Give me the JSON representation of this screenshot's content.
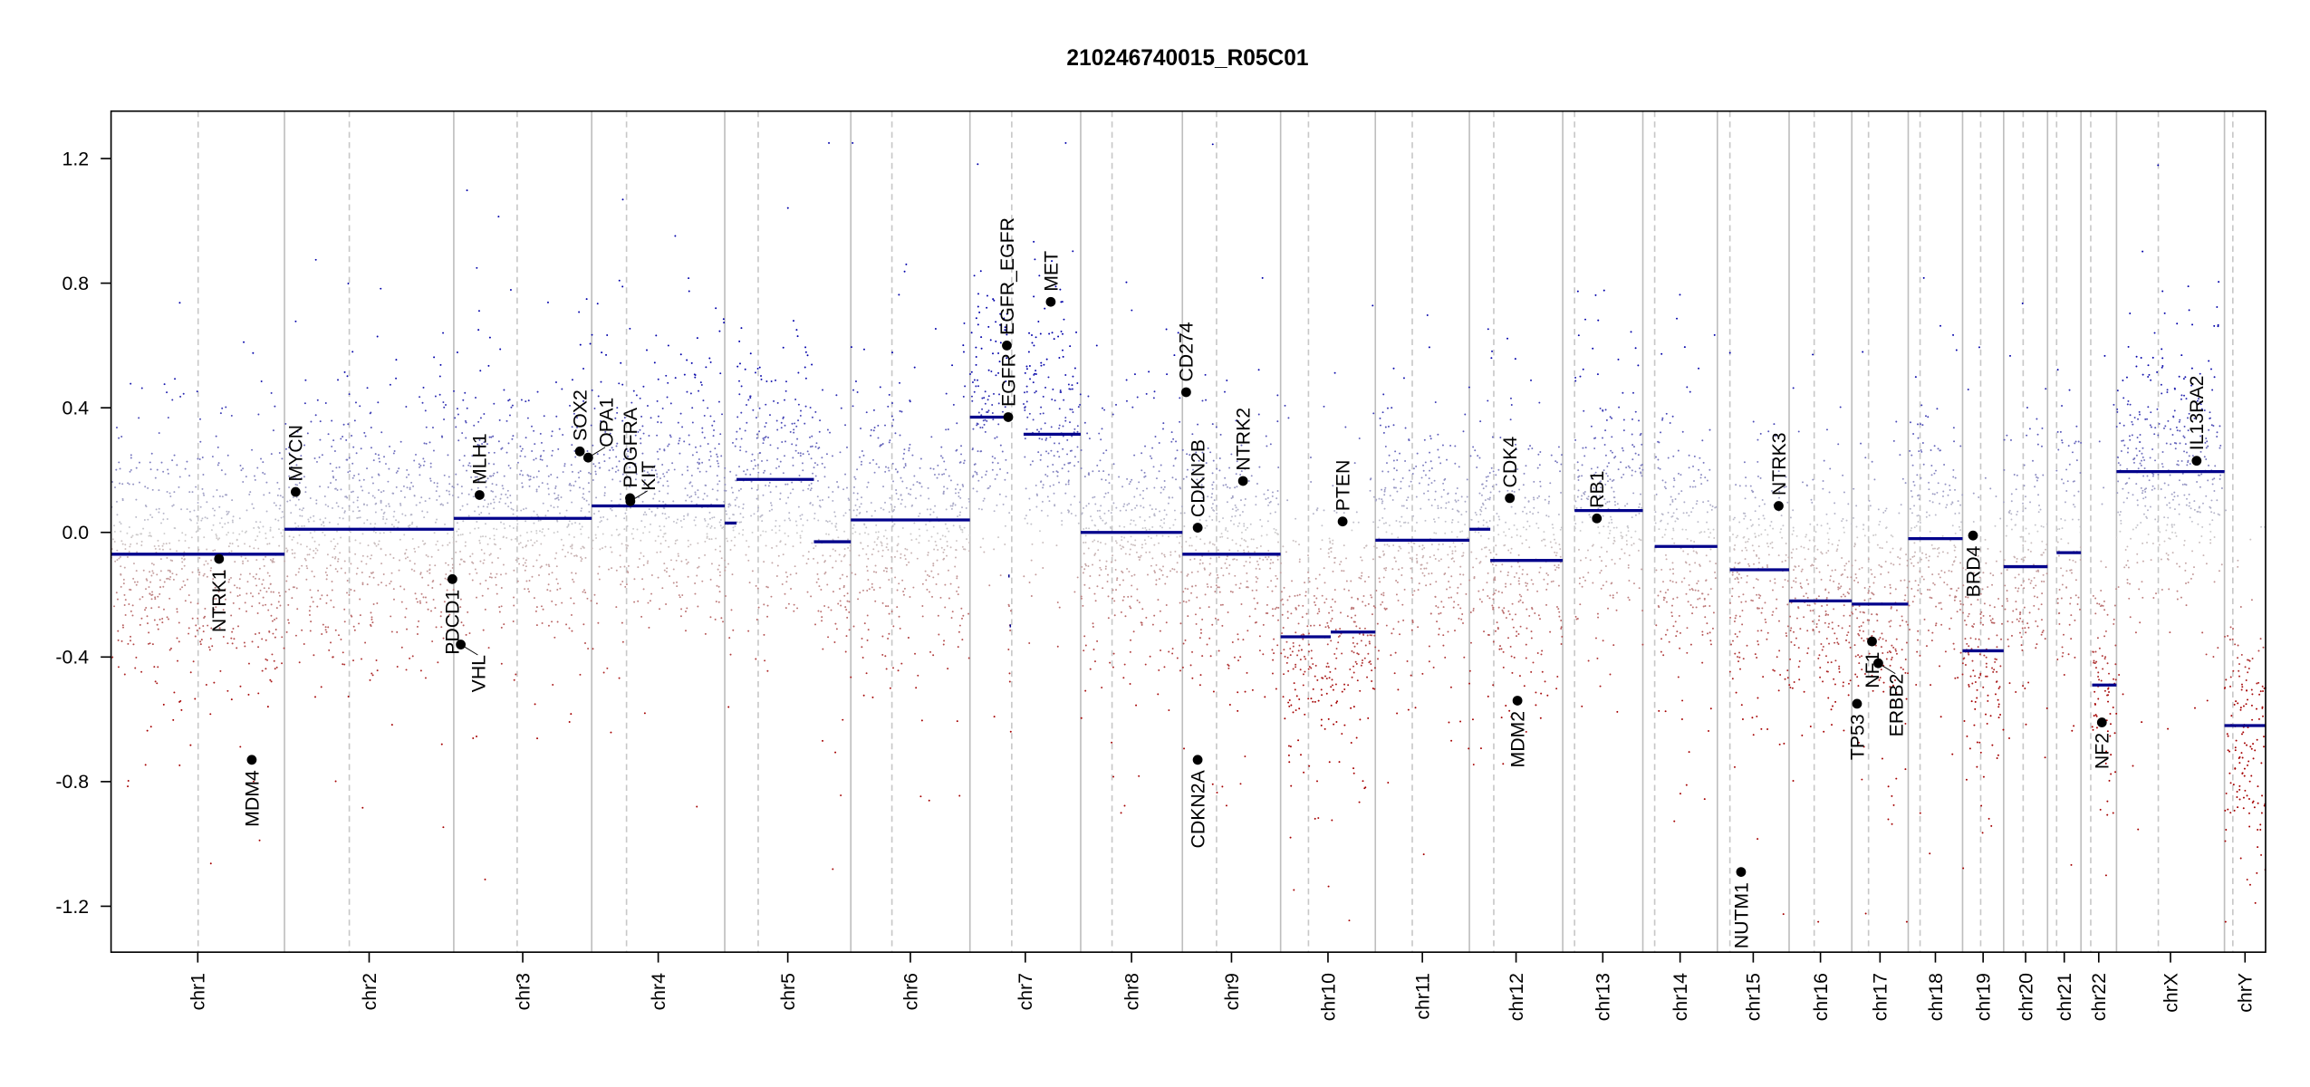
{
  "chart_data": {
    "type": "scatter",
    "title": "210246740015_R05C01",
    "xlabel": "",
    "ylabel": "",
    "ylim": [
      -1.35,
      1.35
    ],
    "yticks": [
      "-1.2",
      "-0.8",
      "-0.4",
      "0.0",
      "0.4",
      "0.8",
      "1.2"
    ],
    "ytick_values": [
      -1.2,
      -0.8,
      -0.4,
      0.0,
      0.4,
      0.8,
      1.2
    ],
    "chromosomes": [
      {
        "name": "chr1",
        "length": 249,
        "centromere": 125
      },
      {
        "name": "chr2",
        "length": 243,
        "centromere": 93
      },
      {
        "name": "chr3",
        "length": 198,
        "centromere": 91
      },
      {
        "name": "chr4",
        "length": 191,
        "centromere": 50
      },
      {
        "name": "chr5",
        "length": 181,
        "centromere": 48
      },
      {
        "name": "chr6",
        "length": 171,
        "centromere": 59
      },
      {
        "name": "chr7",
        "length": 159,
        "centromere": 60
      },
      {
        "name": "chr8",
        "length": 146,
        "centromere": 45
      },
      {
        "name": "chr9",
        "length": 141,
        "centromere": 49
      },
      {
        "name": "chr10",
        "length": 136,
        "centromere": 40
      },
      {
        "name": "chr11",
        "length": 135,
        "centromere": 53
      },
      {
        "name": "chr12",
        "length": 134,
        "centromere": 35
      },
      {
        "name": "chr13",
        "length": 115,
        "centromere": 17
      },
      {
        "name": "chr14",
        "length": 107,
        "centromere": 17
      },
      {
        "name": "chr15",
        "length": 103,
        "centromere": 18
      },
      {
        "name": "chr16",
        "length": 90,
        "centromere": 36
      },
      {
        "name": "chr17",
        "length": 81,
        "centromere": 24
      },
      {
        "name": "chr18",
        "length": 78,
        "centromere": 17
      },
      {
        "name": "chr19",
        "length": 59,
        "centromere": 26
      },
      {
        "name": "chr20",
        "length": 63,
        "centromere": 28
      },
      {
        "name": "chr21",
        "length": 48,
        "centromere": 13
      },
      {
        "name": "chr22",
        "length": 51,
        "centromere": 14
      },
      {
        "name": "chrX",
        "length": 155,
        "centromere": 60
      },
      {
        "name": "chrY",
        "length": 59,
        "centromere": 12
      }
    ],
    "segments": [
      [
        "chr1",
        0,
        249,
        -0.07
      ],
      [
        "chr2",
        0,
        243,
        0.01
      ],
      [
        "chr3",
        0,
        198,
        0.045
      ],
      [
        "chr4",
        0,
        191,
        0.085
      ],
      [
        "chr5",
        0,
        17,
        0.03
      ],
      [
        "chr5",
        17,
        128,
        0.17
      ],
      [
        "chr5",
        128,
        181,
        -0.03
      ],
      [
        "chr6",
        0,
        171,
        0.04
      ],
      [
        "chr7",
        0,
        55,
        0.37
      ],
      [
        "chr7",
        55,
        57,
        -0.14
      ],
      [
        "chr7",
        57,
        59,
        -0.3
      ],
      [
        "chr7",
        77,
        159,
        0.315
      ],
      [
        "chr8",
        0,
        146,
        0.0
      ],
      [
        "chr9",
        0,
        141,
        -0.07
      ],
      [
        "chr10",
        0,
        72,
        -0.335
      ],
      [
        "chr10",
        72,
        136,
        -0.32
      ],
      [
        "chr11",
        0,
        135,
        -0.025
      ],
      [
        "chr12",
        0,
        30,
        0.01
      ],
      [
        "chr12",
        30,
        134,
        -0.09
      ],
      [
        "chr13",
        17,
        115,
        0.07
      ],
      [
        "chr14",
        17,
        107,
        -0.045
      ],
      [
        "chr15",
        18,
        103,
        -0.12
      ],
      [
        "chr16",
        0,
        90,
        -0.22
      ],
      [
        "chr17",
        0,
        81,
        -0.23
      ],
      [
        "chr18",
        0,
        78,
        -0.02
      ],
      [
        "chr19",
        0,
        59,
        -0.38
      ],
      [
        "chr20",
        0,
        63,
        -0.11
      ],
      [
        "chr21",
        13,
        48,
        -0.065
      ],
      [
        "chr22",
        16,
        51,
        -0.49
      ],
      [
        "chrX",
        0,
        155,
        0.195
      ],
      [
        "chrY",
        0,
        59,
        -0.62
      ]
    ],
    "genes": [
      {
        "label": "NTRK1",
        "chr": "chr1",
        "pos": 155,
        "value": -0.085,
        "side": "below"
      },
      {
        "label": "MDM4",
        "chr": "chr1",
        "pos": 202,
        "value": -0.73,
        "side": "below"
      },
      {
        "label": "MYCN",
        "chr": "chr2",
        "pos": 16,
        "value": 0.13,
        "side": "above"
      },
      {
        "label": "PDCD1",
        "chr": "chr2",
        "pos": 241,
        "value": -0.15,
        "side": "below"
      },
      {
        "label": "VHL",
        "chr": "chr3",
        "pos": 10,
        "value": -0.36,
        "side": "below"
      },
      {
        "label": "MLH1",
        "chr": "chr3",
        "pos": 37,
        "value": 0.12,
        "side": "above"
      },
      {
        "label": "SOX2",
        "chr": "chr3",
        "pos": 181,
        "value": 0.26,
        "side": "above"
      },
      {
        "label": "OPA1",
        "chr": "chr3",
        "pos": 193,
        "value": 0.24,
        "side": "above"
      },
      {
        "label": "PDGFRA",
        "chr": "chr4",
        "pos": 55,
        "value": 0.11,
        "side": "above"
      },
      {
        "label": "KIT",
        "chr": "chr4",
        "pos": 55.5,
        "value": 0.1,
        "side": "above"
      },
      {
        "label": "EGFR",
        "chr": "chr7",
        "pos": 55,
        "value": 0.37,
        "side": "above"
      },
      {
        "label": "EGFR_EGFR",
        "chr": "chr7",
        "pos": 53,
        "value": 0.6,
        "side": "above"
      },
      {
        "label": "MET",
        "chr": "chr7",
        "pos": 116,
        "value": 0.74,
        "side": "above"
      },
      {
        "label": "CD274",
        "chr": "chr9",
        "pos": 5.4,
        "value": 0.45,
        "side": "above"
      },
      {
        "label": "CDKN2B",
        "chr": "chr9",
        "pos": 22,
        "value": 0.015,
        "side": "above"
      },
      {
        "label": "CDKN2A",
        "chr": "chr9",
        "pos": 21.9,
        "value": -0.73,
        "side": "below"
      },
      {
        "label": "NTRK2",
        "chr": "chr9",
        "pos": 87,
        "value": 0.165,
        "side": "above"
      },
      {
        "label": "PTEN",
        "chr": "chr10",
        "pos": 89,
        "value": 0.035,
        "side": "above"
      },
      {
        "label": "CDK4",
        "chr": "chr12",
        "pos": 58,
        "value": 0.11,
        "side": "above"
      },
      {
        "label": "MDM2",
        "chr": "chr12",
        "pos": 69,
        "value": -0.54,
        "side": "below"
      },
      {
        "label": "RB1",
        "chr": "chr13",
        "pos": 49,
        "value": 0.045,
        "side": "above"
      },
      {
        "label": "NUTM1",
        "chr": "chr15",
        "pos": 34,
        "value": -1.09,
        "side": "below"
      },
      {
        "label": "NTRK3",
        "chr": "chr15",
        "pos": 88,
        "value": 0.085,
        "side": "above"
      },
      {
        "label": "TP53",
        "chr": "chr17",
        "pos": 7.5,
        "value": -0.55,
        "side": "below"
      },
      {
        "label": "NF1",
        "chr": "chr17",
        "pos": 29,
        "value": -0.35,
        "side": "below"
      },
      {
        "label": "ERBB2",
        "chr": "chr17",
        "pos": 38,
        "value": -0.42,
        "side": "below"
      },
      {
        "label": "BRD4",
        "chr": "chr19",
        "pos": 15,
        "value": -0.01,
        "side": "below"
      },
      {
        "label": "NF2",
        "chr": "chr22",
        "pos": 30,
        "value": -0.61,
        "side": "below"
      },
      {
        "label": "IL13RA2",
        "chr": "chrX",
        "pos": 115,
        "value": 0.23,
        "side": "above"
      }
    ],
    "colors": {
      "gain": "#00009f",
      "loss": "#9f0000",
      "neutral": "#c8c8c8",
      "segment": "#00008b",
      "boundary": "#bebebe"
    }
  }
}
